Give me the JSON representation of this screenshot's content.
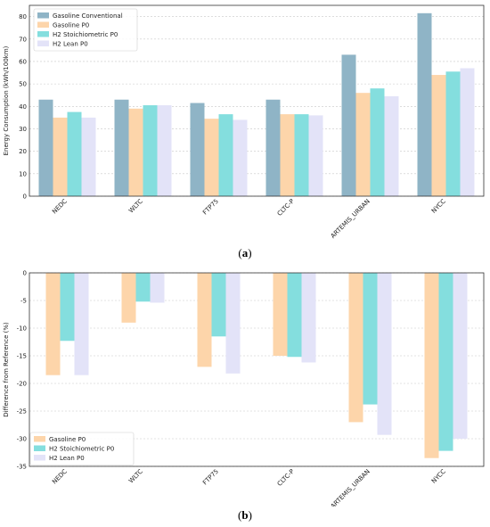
{
  "chart_data": [
    {
      "type": "bar",
      "panel_label": "a",
      "categories": [
        "NEDC",
        "WLTC",
        "FTP75",
        "CLTC-P",
        "ARTEMIS_URBAN",
        "NYCC"
      ],
      "ylabel": "Energy Consumption (kWh/100km)",
      "xlabel": "",
      "ylim": [
        0,
        85
      ],
      "yticks": [
        0,
        10,
        20,
        30,
        40,
        50,
        60,
        70,
        80
      ],
      "grid": true,
      "legend_position": "top-left",
      "series": [
        {
          "name": "Gasoline Conventional",
          "color": "#8fb4c6",
          "values": [
            43,
            43,
            41.5,
            43,
            63,
            81.5
          ]
        },
        {
          "name": "Gasoline P0",
          "color": "#fdd5aa",
          "values": [
            35,
            39,
            34.5,
            36.5,
            46,
            54
          ]
        },
        {
          "name": "H2 Stoichiometric P0",
          "color": "#84dede",
          "values": [
            37.5,
            40.5,
            36.5,
            36.5,
            48,
            55.5
          ]
        },
        {
          "name": "H2 Lean P0",
          "color": "#e3e3f8",
          "values": [
            35,
            40.5,
            34,
            36,
            44.5,
            57
          ]
        }
      ]
    },
    {
      "type": "bar",
      "panel_label": "b",
      "categories": [
        "NEDC",
        "WLTC",
        "FTP75",
        "CLTC-P",
        "ARTEMIS_URBAN",
        "NYCC"
      ],
      "ylabel": "Difference from Reference (%)",
      "xlabel": "",
      "ylim": [
        -35,
        0
      ],
      "yticks": [
        0,
        -5,
        -10,
        -15,
        -20,
        -25,
        -30,
        -35
      ],
      "grid": true,
      "legend_position": "bottom-left",
      "series": [
        {
          "name": "Gasoline P0",
          "color": "#fdd5aa",
          "values": [
            -18.5,
            -9,
            -17,
            -15,
            -27,
            -33.5
          ]
        },
        {
          "name": "H2 Stoichiometric P0",
          "color": "#84dede",
          "values": [
            -12.3,
            -5.2,
            -11.5,
            -15.2,
            -23.8,
            -32.2
          ]
        },
        {
          "name": "H2 Lean P0",
          "color": "#e3e3f8",
          "values": [
            -18.5,
            -5.4,
            -18.2,
            -16.2,
            -29.3,
            -30
          ]
        }
      ]
    }
  ]
}
